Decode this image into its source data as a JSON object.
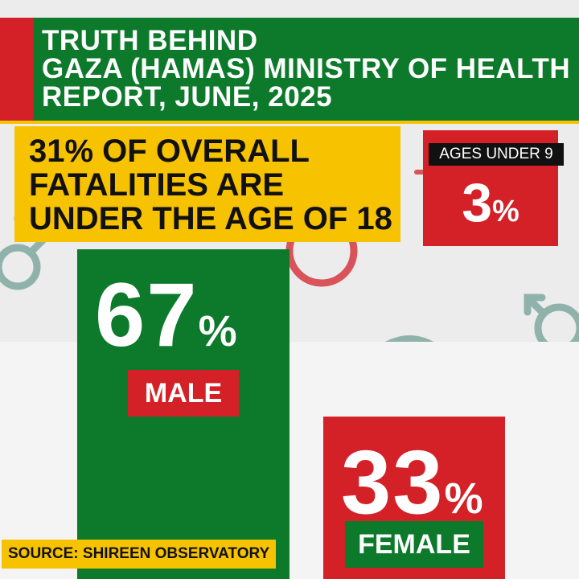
{
  "header": {
    "title_lines": [
      "TRUTH BEHIND",
      "GAZA (HAMAS) MINISTRY OF HEALTH",
      "REPORT, JUNE, 2025"
    ]
  },
  "callout": {
    "lines": [
      "31% OF OVERALL",
      "FATALITIES ARE",
      "UNDER THE AGE OF 18"
    ]
  },
  "ages_under_9": {
    "label": "AGES UNDER 9",
    "value": "3",
    "unit": "%"
  },
  "source": "SOURCE: SHIREEN OBSERVATORY",
  "colors": {
    "green": "#0c7a2a",
    "red": "#d42127",
    "yellow": "#f7c200",
    "black": "#111111",
    "symbol_teal": "#8fb3ab",
    "symbol_red": "#d9535a"
  },
  "chart_data": {
    "type": "bar",
    "categories": [
      "MALE",
      "FEMALE"
    ],
    "values": [
      67,
      33
    ],
    "unit": "%",
    "colors": [
      "#0c7a2a",
      "#d42127"
    ],
    "label_colors": [
      "#d42127",
      "#0c7a2a"
    ],
    "title": "",
    "xlabel": "",
    "ylabel": ""
  }
}
